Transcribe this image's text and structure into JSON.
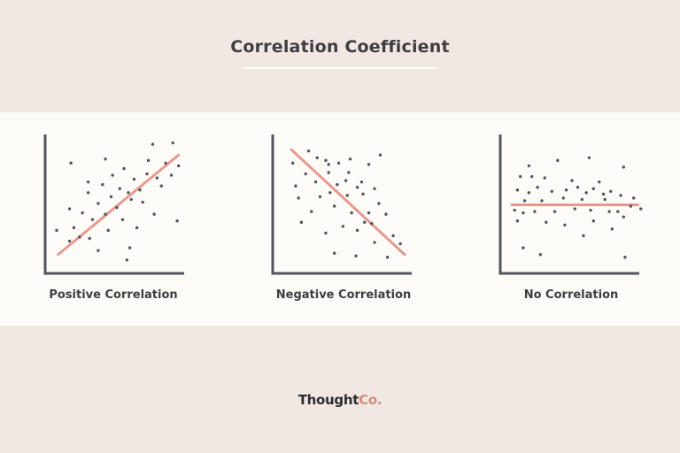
{
  "page": {
    "title": "Correlation Coefficient",
    "brand_main": "Thought",
    "brand_accent": "Co."
  },
  "colors": {
    "background": "#f2e8e3",
    "panel": "#fcfbf7",
    "axis": "#54545c",
    "point": "#54545c",
    "trend_line": "#e59a90",
    "text": "#3e3d42",
    "brand_accent": "#d9897b"
  },
  "chart_data": [
    {
      "type": "scatter",
      "title": "Positive Correlation",
      "xlabel": "",
      "ylabel": "",
      "xlim": [
        0,
        100
      ],
      "ylim": [
        0,
        100
      ],
      "grid": false,
      "ticks": false,
      "trend_line": {
        "x": [
          9,
          93
        ],
        "y": [
          14,
          88
        ]
      },
      "points": [
        {
          "x": 18,
          "y": 82
        },
        {
          "x": 42,
          "y": 85
        },
        {
          "x": 75,
          "y": 96
        },
        {
          "x": 89,
          "y": 97
        },
        {
          "x": 55,
          "y": 78
        },
        {
          "x": 47,
          "y": 73
        },
        {
          "x": 62,
          "y": 70
        },
        {
          "x": 30,
          "y": 68
        },
        {
          "x": 40,
          "y": 66
        },
        {
          "x": 52,
          "y": 63
        },
        {
          "x": 58,
          "y": 60
        },
        {
          "x": 66,
          "y": 62
        },
        {
          "x": 71,
          "y": 74
        },
        {
          "x": 78,
          "y": 71
        },
        {
          "x": 84,
          "y": 82
        },
        {
          "x": 93,
          "y": 80
        },
        {
          "x": 37,
          "y": 52
        },
        {
          "x": 46,
          "y": 57
        },
        {
          "x": 50,
          "y": 49
        },
        {
          "x": 60,
          "y": 55
        },
        {
          "x": 68,
          "y": 53
        },
        {
          "x": 81,
          "y": 65
        },
        {
          "x": 88,
          "y": 73
        },
        {
          "x": 17,
          "y": 48
        },
        {
          "x": 26,
          "y": 45
        },
        {
          "x": 33,
          "y": 40
        },
        {
          "x": 42,
          "y": 44
        },
        {
          "x": 54,
          "y": 40
        },
        {
          "x": 76,
          "y": 44
        },
        {
          "x": 92,
          "y": 39
        },
        {
          "x": 20,
          "y": 34
        },
        {
          "x": 31,
          "y": 26
        },
        {
          "x": 44,
          "y": 32
        },
        {
          "x": 64,
          "y": 34
        },
        {
          "x": 8,
          "y": 32
        },
        {
          "x": 17,
          "y": 24
        },
        {
          "x": 24,
          "y": 27
        },
        {
          "x": 37,
          "y": 17
        },
        {
          "x": 59,
          "y": 19
        },
        {
          "x": 57,
          "y": 10
        },
        {
          "x": 30,
          "y": 60
        },
        {
          "x": 72,
          "y": 84
        }
      ]
    },
    {
      "type": "scatter",
      "title": "Negative Correlation",
      "xlabel": "",
      "ylabel": "",
      "xlim": [
        0,
        100
      ],
      "ylim": [
        0,
        100
      ],
      "grid": false,
      "ticks": false,
      "trend_line": {
        "x": [
          13,
          92
        ],
        "y": [
          92,
          14
        ]
      },
      "points": [
        {
          "x": 25,
          "y": 91
        },
        {
          "x": 31,
          "y": 86
        },
        {
          "x": 37,
          "y": 84
        },
        {
          "x": 14,
          "y": 82
        },
        {
          "x": 39,
          "y": 81
        },
        {
          "x": 46,
          "y": 82
        },
        {
          "x": 54,
          "y": 85
        },
        {
          "x": 75,
          "y": 88
        },
        {
          "x": 67,
          "y": 81
        },
        {
          "x": 23,
          "y": 74
        },
        {
          "x": 39,
          "y": 75
        },
        {
          "x": 53,
          "y": 75
        },
        {
          "x": 16,
          "y": 65
        },
        {
          "x": 30,
          "y": 68
        },
        {
          "x": 45,
          "y": 66
        },
        {
          "x": 51,
          "y": 69
        },
        {
          "x": 59,
          "y": 64
        },
        {
          "x": 62,
          "y": 68
        },
        {
          "x": 71,
          "y": 63
        },
        {
          "x": 40,
          "y": 60
        },
        {
          "x": 52,
          "y": 58
        },
        {
          "x": 63,
          "y": 59
        },
        {
          "x": 18,
          "y": 56
        },
        {
          "x": 33,
          "y": 57
        },
        {
          "x": 74,
          "y": 52
        },
        {
          "x": 43,
          "y": 50
        },
        {
          "x": 55,
          "y": 45
        },
        {
          "x": 67,
          "y": 45
        },
        {
          "x": 79,
          "y": 44
        },
        {
          "x": 20,
          "y": 38
        },
        {
          "x": 49,
          "y": 35
        },
        {
          "x": 59,
          "y": 32
        },
        {
          "x": 64,
          "y": 38
        },
        {
          "x": 69,
          "y": 37
        },
        {
          "x": 84,
          "y": 28
        },
        {
          "x": 37,
          "y": 30
        },
        {
          "x": 71,
          "y": 23
        },
        {
          "x": 89,
          "y": 22
        },
        {
          "x": 43,
          "y": 15
        },
        {
          "x": 58,
          "y": 13
        },
        {
          "x": 80,
          "y": 12
        },
        {
          "x": 27,
          "y": 46
        }
      ]
    },
    {
      "type": "scatter",
      "title": "No Correlation",
      "xlabel": "",
      "ylabel": "",
      "xlim": [
        0,
        100
      ],
      "ylim": [
        0,
        100
      ],
      "grid": false,
      "ticks": false,
      "trend_line": {
        "x": [
          8,
          96
        ],
        "y": [
          51,
          51
        ]
      },
      "points": [
        {
          "x": 20,
          "y": 80
        },
        {
          "x": 40,
          "y": 84
        },
        {
          "x": 62,
          "y": 86
        },
        {
          "x": 86,
          "y": 79
        },
        {
          "x": 14,
          "y": 72
        },
        {
          "x": 22,
          "y": 72
        },
        {
          "x": 31,
          "y": 71
        },
        {
          "x": 50,
          "y": 69
        },
        {
          "x": 69,
          "y": 68
        },
        {
          "x": 12,
          "y": 62
        },
        {
          "x": 20,
          "y": 60
        },
        {
          "x": 26,
          "y": 64
        },
        {
          "x": 36,
          "y": 61
        },
        {
          "x": 46,
          "y": 62
        },
        {
          "x": 54,
          "y": 64
        },
        {
          "x": 60,
          "y": 60
        },
        {
          "x": 65,
          "y": 63
        },
        {
          "x": 72,
          "y": 59
        },
        {
          "x": 77,
          "y": 61
        },
        {
          "x": 84,
          "y": 58
        },
        {
          "x": 93,
          "y": 56
        },
        {
          "x": 17,
          "y": 54
        },
        {
          "x": 29,
          "y": 54
        },
        {
          "x": 44,
          "y": 56
        },
        {
          "x": 57,
          "y": 55
        },
        {
          "x": 73,
          "y": 55
        },
        {
          "x": 91,
          "y": 50
        },
        {
          "x": 10,
          "y": 47
        },
        {
          "x": 16,
          "y": 45
        },
        {
          "x": 24,
          "y": 46
        },
        {
          "x": 38,
          "y": 46
        },
        {
          "x": 52,
          "y": 48
        },
        {
          "x": 63,
          "y": 47
        },
        {
          "x": 76,
          "y": 46
        },
        {
          "x": 82,
          "y": 46
        },
        {
          "x": 98,
          "y": 48
        },
        {
          "x": 86,
          "y": 42
        },
        {
          "x": 12,
          "y": 39
        },
        {
          "x": 32,
          "y": 38
        },
        {
          "x": 45,
          "y": 36
        },
        {
          "x": 65,
          "y": 39
        },
        {
          "x": 78,
          "y": 33
        },
        {
          "x": 58,
          "y": 28
        },
        {
          "x": 16,
          "y": 19
        },
        {
          "x": 28,
          "y": 14
        },
        {
          "x": 87,
          "y": 12
        }
      ]
    }
  ]
}
